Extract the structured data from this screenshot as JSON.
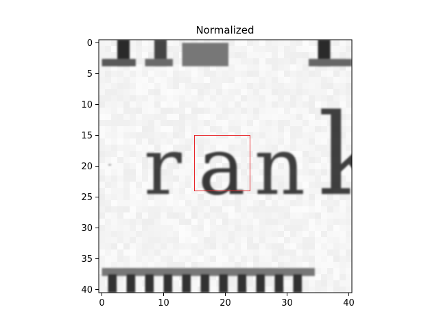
{
  "chart_data": {
    "type": "heatmap",
    "title": "Normalized",
    "xlabel": "",
    "ylabel": "",
    "xlim": [
      -0.5,
      40.5
    ],
    "ylim": [
      40.5,
      -0.5
    ],
    "x_ticks": [
      0,
      10,
      20,
      30,
      40
    ],
    "y_ticks": [
      0,
      5,
      10,
      15,
      20,
      25,
      30,
      35,
      40
    ],
    "colormap": "gray",
    "grid": false,
    "rows": 41,
    "cols": 41,
    "rect": {
      "x0": 15,
      "y0": 15,
      "x1": 24,
      "y1": 24,
      "color": "#e8262a"
    },
    "glyphs": [
      {
        "char": "-",
        "x": 1.0,
        "y": 20.2,
        "wd": 5.5,
        "ht": 1.2,
        "ink": 0.85
      },
      {
        "char": "r",
        "x": 6.8,
        "y": 24.5,
        "wd": 6.8,
        "ht": 9.5,
        "ink": 0.85
      },
      {
        "char": "a",
        "x": 15.6,
        "y": 24.5,
        "wd": 8.2,
        "ht": 9.5,
        "ink": 0.88
      },
      {
        "char": "n",
        "x": 24.7,
        "y": 24.5,
        "wd": 10.2,
        "ht": 9.5,
        "ink": 0.85
      },
      {
        "char": "k",
        "x": 35.0,
        "y": 24.5,
        "wd": 10.5,
        "ht": 13.5,
        "ink": 0.85
      }
    ]
  }
}
